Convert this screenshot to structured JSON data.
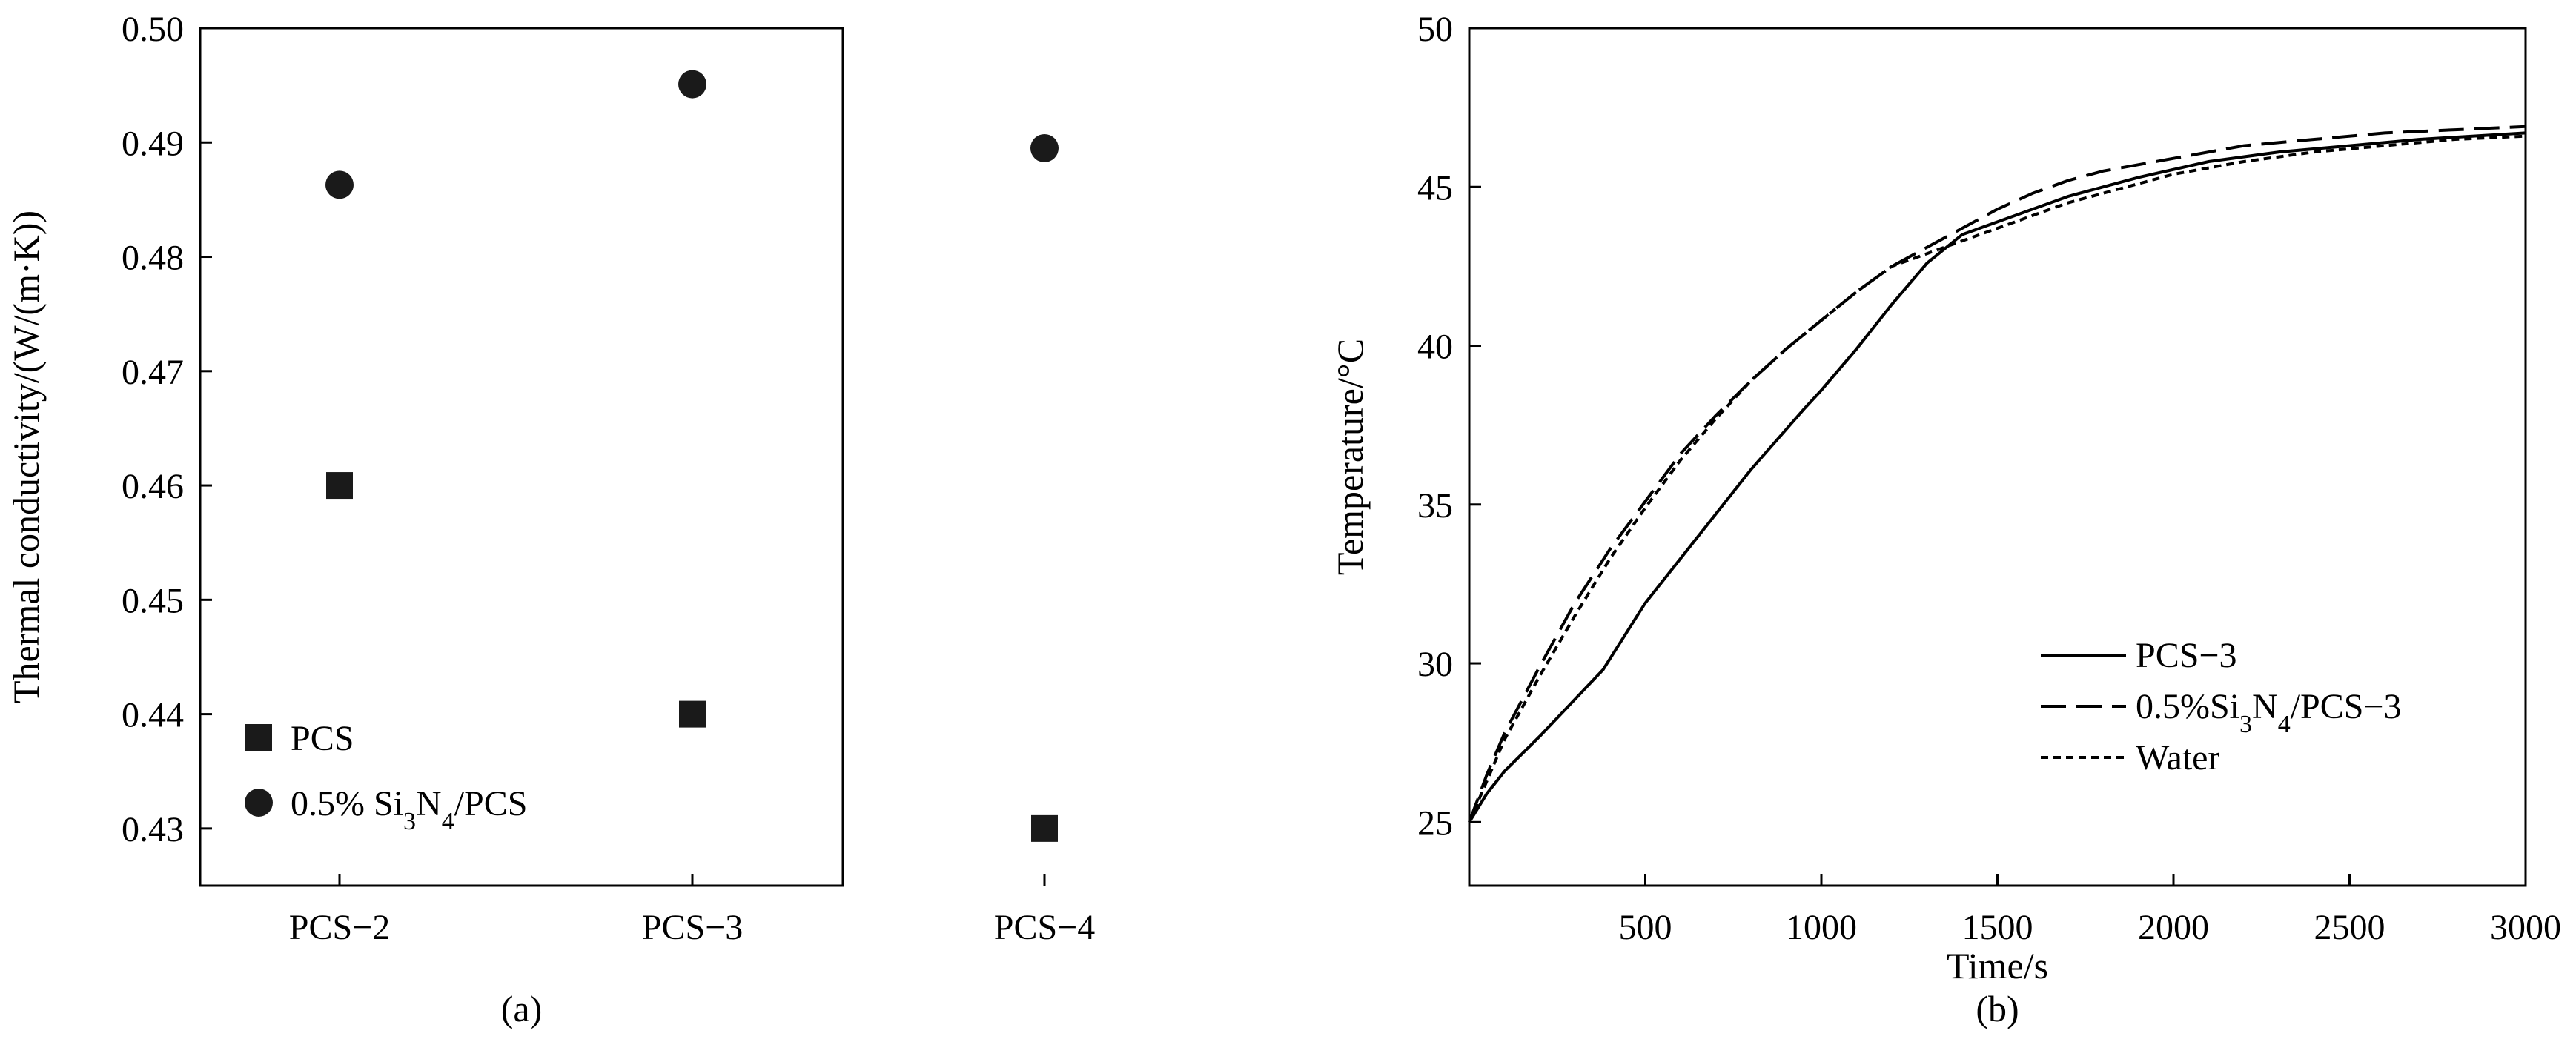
{
  "chart_data": [
    {
      "type": "scatter",
      "panel_label": "(a)",
      "ylabel": "Thermal conductivity/(W/(m·K))",
      "xlabel": "",
      "categories": [
        "PCS−2",
        "PCS−3",
        "PCS−4"
      ],
      "ylim": [
        0.425,
        0.5
      ],
      "y_ticks": [
        "0.43",
        "0.44",
        "0.45",
        "0.46",
        "0.47",
        "0.48",
        "0.49",
        "0.50"
      ],
      "grid": false,
      "legend_position": "bottom-left",
      "series": [
        {
          "name": "PCS",
          "name_html": "PCS",
          "marker": "square",
          "color": "#1a1a1a",
          "values": [
            0.46,
            0.44,
            0.43
          ]
        },
        {
          "name": "0.5% Si3N4/PCS",
          "name_html": "0.5% Si<tspan baseline-shift='sub' font-size='34'>3</tspan>N<tspan baseline-shift='sub' font-size='34'>4</tspan>/PCS",
          "marker": "circle",
          "color": "#1a1a1a",
          "values": [
            0.4863,
            0.4951,
            0.4895
          ]
        }
      ]
    },
    {
      "type": "line",
      "panel_label": "(b)",
      "xlabel": "Time/s",
      "ylabel": "Temperature/°C",
      "xlim": [
        0,
        3000
      ],
      "ylim": [
        23,
        50
      ],
      "x_ticks": [
        "500",
        "1000",
        "1500",
        "2000",
        "2500",
        "3000"
      ],
      "y_ticks": [
        "25",
        "30",
        "35",
        "40",
        "45",
        "50"
      ],
      "grid": false,
      "legend_position": "bottom-right",
      "series": [
        {
          "name": "PCS−3",
          "name_html": "PCS−3",
          "style": "solid",
          "color": "#000000",
          "x": [
            0,
            50,
            100,
            200,
            380,
            500,
            650,
            800,
            950,
            1000,
            1100,
            1200,
            1300,
            1400,
            1500,
            1700,
            1900,
            2100,
            2300,
            2500,
            2700,
            3000
          ],
          "y": [
            25.0,
            25.9,
            26.6,
            27.7,
            29.8,
            31.9,
            34.0,
            36.1,
            38.0,
            38.6,
            39.9,
            41.3,
            42.6,
            43.5,
            43.9,
            44.7,
            45.3,
            45.8,
            46.1,
            46.3,
            46.5,
            46.7
          ]
        },
        {
          "name": "0.5%Si3N4/PCS−3",
          "name_html": "0.5%Si<tspan baseline-shift='sub' font-size='34'>3</tspan>N<tspan baseline-shift='sub' font-size='34'>4</tspan>/PCS−3",
          "style": "dashed",
          "color": "#000000",
          "x": [
            0,
            50,
            100,
            200,
            300,
            400,
            500,
            600,
            700,
            800,
            900,
            1000,
            1100,
            1200,
            1300,
            1400,
            1500,
            1600,
            1700,
            1800,
            2000,
            2200,
            2400,
            2600,
            2800,
            3000
          ],
          "y": [
            25.0,
            26.5,
            27.8,
            29.9,
            31.9,
            33.6,
            35.1,
            36.6,
            37.8,
            38.9,
            39.9,
            40.8,
            41.7,
            42.5,
            43.1,
            43.7,
            44.3,
            44.8,
            45.2,
            45.5,
            45.9,
            46.3,
            46.5,
            46.7,
            46.8,
            46.9
          ]
        },
        {
          "name": "Water",
          "name_html": "Water",
          "style": "dotted",
          "color": "#000000",
          "x": [
            0,
            50,
            100,
            200,
            300,
            400,
            500,
            600,
            700,
            800,
            900,
            1000,
            1100,
            1200,
            1300,
            1400,
            1500,
            1600,
            1700,
            1800,
            2000,
            2200,
            2400,
            2600,
            2800,
            3000
          ],
          "y": [
            25.0,
            26.3,
            27.6,
            29.6,
            31.5,
            33.3,
            34.9,
            36.4,
            37.7,
            38.9,
            39.9,
            40.8,
            41.7,
            42.5,
            42.9,
            43.3,
            43.7,
            44.1,
            44.5,
            44.8,
            45.4,
            45.8,
            46.1,
            46.3,
            46.5,
            46.6
          ]
        }
      ]
    }
  ]
}
